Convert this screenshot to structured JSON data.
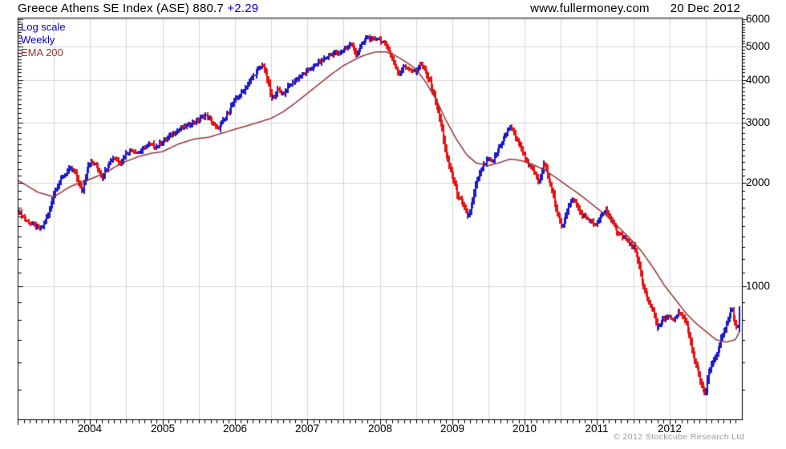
{
  "header": {
    "title": "Greece Athens SE Index (ASE) 880.7",
    "change": "+2.29",
    "site": "www.fullermoney.com",
    "date": "20 Dec 2012"
  },
  "legend": {
    "scale_label": "Log scale",
    "interval_label": "Weekly",
    "ema_label": "EMA 200"
  },
  "footer": {
    "copyright": "© 2012 Stockcube Research Ltd"
  },
  "colors": {
    "up_bar": "#1a1acd",
    "down_bar": "#e81111",
    "ema_line": "#993333",
    "grid": "#d6d6d6",
    "axis": "#000000",
    "accent_blue": "#0000cc",
    "copyright_gray": "#9b9b9b",
    "background": "#ffffff"
  },
  "chart_data": {
    "type": "ohlc_weekly_bars",
    "title": "Greece Athens SE Index (ASE)",
    "last_price": 880.7,
    "change": "+2.29",
    "scale": "log",
    "interval": "Weekly",
    "overlay": "EMA 200",
    "legend_position": "top-left",
    "grid": true,
    "xlim": [
      2003.0,
      2013.0
    ],
    "ylim": [
      410,
      6070
    ],
    "x_tick_years": [
      2004,
      2005,
      2006,
      2007,
      2008,
      2009,
      2010,
      2011,
      2012
    ],
    "y_tick_values": [
      6000,
      5000,
      4000,
      3000,
      2000,
      1000
    ],
    "up_means": "week closed higher (blue)",
    "down_means": "week closed lower (red)",
    "price_anchors": [
      [
        2003.02,
        1650
      ],
      [
        2003.11,
        1560
      ],
      [
        2003.24,
        1500
      ],
      [
        2003.33,
        1470
      ],
      [
        2003.42,
        1610
      ],
      [
        2003.51,
        1900
      ],
      [
        2003.61,
        2070
      ],
      [
        2003.72,
        2200
      ],
      [
        2003.8,
        2150
      ],
      [
        2003.89,
        1870
      ],
      [
        2003.97,
        2250
      ],
      [
        2004.02,
        2300
      ],
      [
        2004.09,
        2250
      ],
      [
        2004.17,
        2080
      ],
      [
        2004.26,
        2300
      ],
      [
        2004.33,
        2380
      ],
      [
        2004.42,
        2300
      ],
      [
        2004.5,
        2450
      ],
      [
        2004.59,
        2500
      ],
      [
        2004.67,
        2450
      ],
      [
        2004.76,
        2550
      ],
      [
        2004.83,
        2600
      ],
      [
        2004.91,
        2550
      ],
      [
        2004.98,
        2630
      ],
      [
        2005.06,
        2700
      ],
      [
        2005.17,
        2820
      ],
      [
        2005.28,
        2900
      ],
      [
        2005.39,
        2980
      ],
      [
        2005.5,
        3050
      ],
      [
        2005.58,
        3150
      ],
      [
        2005.64,
        3100
      ],
      [
        2005.76,
        2870
      ],
      [
        2005.87,
        3100
      ],
      [
        2006.0,
        3500
      ],
      [
        2006.11,
        3700
      ],
      [
        2006.22,
        4000
      ],
      [
        2006.31,
        4250
      ],
      [
        2006.39,
        4430
      ],
      [
        2006.44,
        4100
      ],
      [
        2006.51,
        3500
      ],
      [
        2006.59,
        3750
      ],
      [
        2006.67,
        3650
      ],
      [
        2006.76,
        3850
      ],
      [
        2006.84,
        4000
      ],
      [
        2006.94,
        4150
      ],
      [
        2007.03,
        4300
      ],
      [
        2007.11,
        4400
      ],
      [
        2007.2,
        4550
      ],
      [
        2007.29,
        4700
      ],
      [
        2007.37,
        4800
      ],
      [
        2007.44,
        4750
      ],
      [
        2007.52,
        4950
      ],
      [
        2007.6,
        5100
      ],
      [
        2007.68,
        4750
      ],
      [
        2007.76,
        5100
      ],
      [
        2007.83,
        5350
      ],
      [
        2007.9,
        5200
      ],
      [
        2007.97,
        5330
      ],
      [
        2008.04,
        5150
      ],
      [
        2008.11,
        5000
      ],
      [
        2008.19,
        4500
      ],
      [
        2008.27,
        4150
      ],
      [
        2008.34,
        4400
      ],
      [
        2008.42,
        4300
      ],
      [
        2008.5,
        4200
      ],
      [
        2008.56,
        4500
      ],
      [
        2008.62,
        4250
      ],
      [
        2008.7,
        3900
      ],
      [
        2008.78,
        3400
      ],
      [
        2008.86,
        2900
      ],
      [
        2008.92,
        2400
      ],
      [
        2009.0,
        2100
      ],
      [
        2009.08,
        1850
      ],
      [
        2009.16,
        1700
      ],
      [
        2009.22,
        1600
      ],
      [
        2009.28,
        1750
      ],
      [
        2009.33,
        2000
      ],
      [
        2009.41,
        2200
      ],
      [
        2009.49,
        2350
      ],
      [
        2009.56,
        2300
      ],
      [
        2009.63,
        2500
      ],
      [
        2009.71,
        2700
      ],
      [
        2009.8,
        2930
      ],
      [
        2009.89,
        2700
      ],
      [
        2009.98,
        2450
      ],
      [
        2010.06,
        2250
      ],
      [
        2010.13,
        2150
      ],
      [
        2010.2,
        2000
      ],
      [
        2010.27,
        2300
      ],
      [
        2010.37,
        1950
      ],
      [
        2010.44,
        1650
      ],
      [
        2010.52,
        1500
      ],
      [
        2010.6,
        1700
      ],
      [
        2010.68,
        1800
      ],
      [
        2010.76,
        1650
      ],
      [
        2010.83,
        1600
      ],
      [
        2010.91,
        1550
      ],
      [
        2010.99,
        1500
      ],
      [
        2011.06,
        1620
      ],
      [
        2011.13,
        1680
      ],
      [
        2011.2,
        1550
      ],
      [
        2011.28,
        1450
      ],
      [
        2011.36,
        1400
      ],
      [
        2011.43,
        1350
      ],
      [
        2011.51,
        1300
      ],
      [
        2011.58,
        1150
      ],
      [
        2011.64,
        1000
      ],
      [
        2011.71,
        900
      ],
      [
        2011.78,
        850
      ],
      [
        2011.84,
        750
      ],
      [
        2011.91,
        800
      ],
      [
        2011.98,
        820
      ],
      [
        2012.06,
        790
      ],
      [
        2012.12,
        840
      ],
      [
        2012.19,
        820
      ],
      [
        2012.26,
        750
      ],
      [
        2012.31,
        650
      ],
      [
        2012.38,
        580
      ],
      [
        2012.44,
        520
      ],
      [
        2012.49,
        480
      ],
      [
        2012.54,
        560
      ],
      [
        2012.6,
        600
      ],
      [
        2012.66,
        640
      ],
      [
        2012.71,
        700
      ],
      [
        2012.77,
        750
      ],
      [
        2012.82,
        810
      ],
      [
        2012.86,
        860
      ],
      [
        2012.9,
        790
      ],
      [
        2012.94,
        760
      ],
      [
        2012.97,
        880.7
      ]
    ],
    "ema_anchors": [
      [
        2003.02,
        2030
      ],
      [
        2003.28,
        1880
      ],
      [
        2003.5,
        1825
      ],
      [
        2003.72,
        1950
      ],
      [
        2003.89,
        2020
      ],
      [
        2004.02,
        2060
      ],
      [
        2004.22,
        2150
      ],
      [
        2004.44,
        2290
      ],
      [
        2004.67,
        2390
      ],
      [
        2004.83,
        2440
      ],
      [
        2005.0,
        2470
      ],
      [
        2005.22,
        2600
      ],
      [
        2005.44,
        2690
      ],
      [
        2005.64,
        2720
      ],
      [
        2005.83,
        2800
      ],
      [
        2006.0,
        2870
      ],
      [
        2006.17,
        2940
      ],
      [
        2006.33,
        3010
      ],
      [
        2006.5,
        3090
      ],
      [
        2006.67,
        3230
      ],
      [
        2006.83,
        3420
      ],
      [
        2007.0,
        3650
      ],
      [
        2007.17,
        3900
      ],
      [
        2007.33,
        4150
      ],
      [
        2007.5,
        4400
      ],
      [
        2007.67,
        4600
      ],
      [
        2007.8,
        4730
      ],
      [
        2007.94,
        4820
      ],
      [
        2008.09,
        4820
      ],
      [
        2008.22,
        4700
      ],
      [
        2008.37,
        4500
      ],
      [
        2008.5,
        4300
      ],
      [
        2008.63,
        3950
      ],
      [
        2008.78,
        3500
      ],
      [
        2008.91,
        3060
      ],
      [
        2009.06,
        2680
      ],
      [
        2009.2,
        2420
      ],
      [
        2009.33,
        2290
      ],
      [
        2009.5,
        2250
      ],
      [
        2009.67,
        2300
      ],
      [
        2009.8,
        2350
      ],
      [
        2009.94,
        2330
      ],
      [
        2010.11,
        2270
      ],
      [
        2010.28,
        2180
      ],
      [
        2010.44,
        2070
      ],
      [
        2010.61,
        1950
      ],
      [
        2010.78,
        1840
      ],
      [
        2010.94,
        1730
      ],
      [
        2011.11,
        1620
      ],
      [
        2011.28,
        1500
      ],
      [
        2011.44,
        1390
      ],
      [
        2011.61,
        1270
      ],
      [
        2011.78,
        1130
      ],
      [
        2011.94,
        1000
      ],
      [
        2012.11,
        900
      ],
      [
        2012.24,
        830
      ],
      [
        2012.37,
        780
      ],
      [
        2012.5,
        740
      ],
      [
        2012.64,
        700
      ],
      [
        2012.78,
        688
      ],
      [
        2012.91,
        700
      ],
      [
        2012.97,
        740
      ]
    ]
  }
}
